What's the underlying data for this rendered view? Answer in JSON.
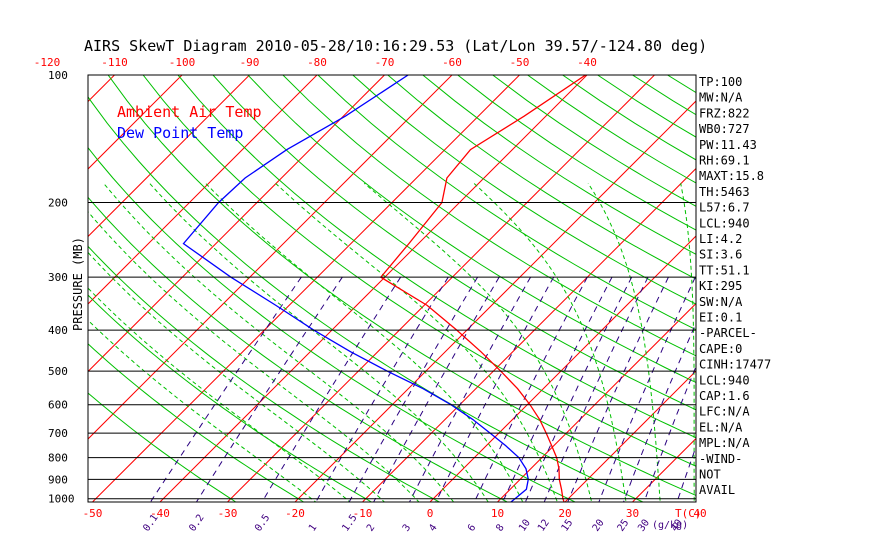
{
  "chart_data": {
    "type": "line",
    "title": "AIRS SkewT Diagram 2010-05-28/10:16:29.53 (Lat/Lon 39.57/-124.80 deg)",
    "ylabel": "PRESSURE (MB)",
    "x_unit_label": "T(C)",
    "mixing_ratio_unit_label": "(g/kg)",
    "legend": [
      {
        "name": "Ambient Air Temp",
        "color": "#ff0000"
      },
      {
        "name": "Dew Point Temp",
        "color": "#0000ff"
      }
    ],
    "legend_position": "top-left",
    "pressure_range": [
      100,
      1050
    ],
    "pressure_ticks": [
      100,
      200,
      300,
      400,
      500,
      600,
      700,
      800,
      900,
      1000
    ],
    "top_temp_ticks": [
      -120,
      -110,
      -100,
      -90,
      -80,
      -70,
      -60,
      -50,
      -40
    ],
    "bottom_temp_ticks": [
      -50,
      -40,
      -30,
      -20,
      -10,
      0,
      10,
      20,
      30,
      40
    ],
    "mixing_ratio_ticks": [
      "0.1",
      "0.2",
      "0.5",
      "1",
      "1.5",
      "2",
      "3",
      "4",
      "6",
      "8",
      "10",
      "12",
      "15",
      "20",
      "25",
      "30",
      "40"
    ],
    "series": [
      {
        "name": "Ambient Air Temp",
        "color": "#ff0000",
        "points": [
          {
            "p": 100,
            "t": -40.2
          },
          {
            "p": 125,
            "t": -43.2
          },
          {
            "p": 150,
            "t": -46.2
          },
          {
            "p": 175,
            "t": -45.5
          },
          {
            "p": 200,
            "t": -42.6
          },
          {
            "p": 250,
            "t": -41.4
          },
          {
            "p": 300,
            "t": -40.6
          },
          {
            "p": 350,
            "t": -29.5
          },
          {
            "p": 400,
            "t": -21.5
          },
          {
            "p": 450,
            "t": -14.7
          },
          {
            "p": 500,
            "t": -8.9
          },
          {
            "p": 550,
            "t": -3.8
          },
          {
            "p": 600,
            "t": 0.4
          },
          {
            "p": 650,
            "t": 4.0
          },
          {
            "p": 700,
            "t": 7.0
          },
          {
            "p": 750,
            "t": 9.7
          },
          {
            "p": 800,
            "t": 12.2
          },
          {
            "p": 850,
            "t": 14.2
          },
          {
            "p": 900,
            "t": 15.8
          },
          {
            "p": 950,
            "t": 17.6
          },
          {
            "p": 1000,
            "t": 19.2
          },
          {
            "p": 1030,
            "t": 20.3
          }
        ]
      },
      {
        "name": "Dew Point Temp",
        "color": "#0000ff",
        "points": [
          {
            "p": 100,
            "t": -66.5
          },
          {
            "p": 125,
            "t": -69.7
          },
          {
            "p": 150,
            "t": -73.4
          },
          {
            "p": 175,
            "t": -75.4
          },
          {
            "p": 200,
            "t": -75.7
          },
          {
            "p": 250,
            "t": -74.8
          },
          {
            "p": 300,
            "t": -62.8
          },
          {
            "p": 350,
            "t": -51.9
          },
          {
            "p": 400,
            "t": -42.7
          },
          {
            "p": 450,
            "t": -34.0
          },
          {
            "p": 500,
            "t": -25.7
          },
          {
            "p": 550,
            "t": -17.8
          },
          {
            "p": 600,
            "t": -11.3
          },
          {
            "p": 650,
            "t": -5.9
          },
          {
            "p": 700,
            "t": -1.3
          },
          {
            "p": 750,
            "t": 2.9
          },
          {
            "p": 800,
            "t": 6.6
          },
          {
            "p": 850,
            "t": 9.3
          },
          {
            "p": 900,
            "t": 11.2
          },
          {
            "p": 950,
            "t": 12.4
          },
          {
            "p": 1000,
            "t": 12.1
          },
          {
            "p": 1030,
            "t": 11.9
          }
        ]
      }
    ],
    "indices": [
      "TP:100",
      "MW:N/A",
      "FRZ:822",
      "WB0:727",
      "PW:11.43",
      "RH:69.1",
      "MAXT:15.8",
      "TH:5463",
      "L57:6.7",
      "LCL:940",
      "LI:4.2",
      "SI:3.6",
      "TT:51.1",
      "KI:295",
      "SW:N/A",
      "EI:0.1",
      "-PARCEL-",
      "CAPE:0",
      "CINH:17477",
      "LCL:940",
      "CAP:1.6",
      "LFC:N/A",
      "EL:N/A",
      "MPL:N/A",
      "-WIND-",
      "NOT",
      "AVAIL"
    ],
    "colors": {
      "isotherm": "#ff0000",
      "dry_adiabat": "#00c000",
      "moist_adiabat": "#00c000",
      "mixing_ratio": "#2a0080",
      "isobar": "#000000",
      "top_tick_label": "#ff0000",
      "bottom_tick_label": "#ff0000",
      "mixing_label": "#400080"
    }
  }
}
